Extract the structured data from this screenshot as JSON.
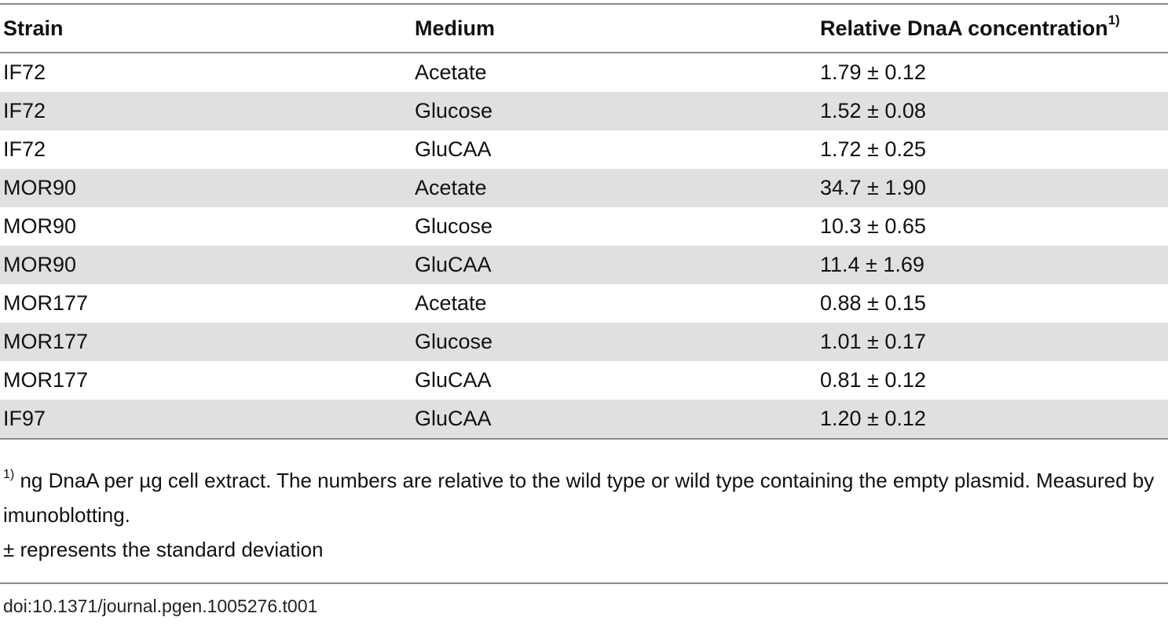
{
  "table": {
    "headers": {
      "strain": "Strain",
      "medium": "Medium",
      "concentration": "Relative DnaA concentration",
      "concentration_sup": "1)"
    },
    "rows": [
      {
        "strain": "IF72",
        "medium": "Acetate",
        "value": "1.79 ± 0.12"
      },
      {
        "strain": "IF72",
        "medium": "Glucose",
        "value": "1.52 ± 0.08"
      },
      {
        "strain": "IF72",
        "medium": "GluCAA",
        "value": "1.72 ± 0.25"
      },
      {
        "strain": "MOR90",
        "medium": "Acetate",
        "value": "34.7 ± 1.90"
      },
      {
        "strain": "MOR90",
        "medium": "Glucose",
        "value": "10.3 ± 0.65"
      },
      {
        "strain": "MOR90",
        "medium": "GluCAA",
        "value": "11.4 ± 1.69"
      },
      {
        "strain": "MOR177",
        "medium": "Acetate",
        "value": "0.88 ± 0.15"
      },
      {
        "strain": "MOR177",
        "medium": "Glucose",
        "value": "1.01 ± 0.17"
      },
      {
        "strain": "MOR177",
        "medium": "GluCAA",
        "value": "0.81 ± 0.12"
      },
      {
        "strain": "IF97",
        "medium": "GluCAA",
        "value": "1.20 ± 0.12"
      }
    ]
  },
  "footnotes": {
    "note1_marker": "1)",
    "note1_text": " ng DnaA per µg cell extract. The numbers are relative to the wild type or wild type containing the empty plasmid. Measured by imunoblotting.",
    "note2_text": "± represents the standard deviation"
  },
  "doi": "doi:10.1371/journal.pgen.1005276.t001"
}
